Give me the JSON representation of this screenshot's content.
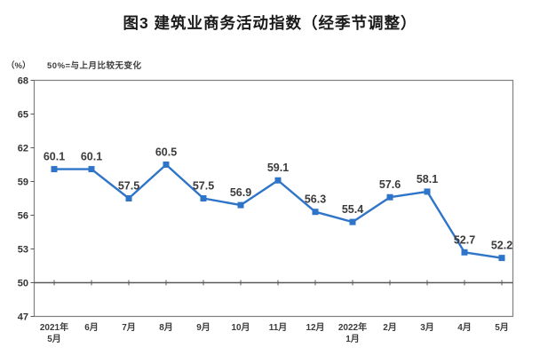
{
  "page": {
    "background": "#ffffff"
  },
  "chart_data": {
    "type": "line",
    "title": "图3 建筑业商务活动指数（经季节调整）",
    "unit_label": "（%）",
    "note": "50%=与上月比较无变化",
    "categories": [
      "2021年\n5月",
      "6月",
      "7月",
      "8月",
      "9月",
      "10月",
      "11月",
      "12月",
      "2022年\n1月",
      "2月",
      "3月",
      "4月",
      "5月"
    ],
    "values": [
      60.1,
      60.1,
      57.5,
      60.5,
      57.5,
      56.9,
      59.1,
      56.3,
      55.4,
      57.6,
      58.1,
      52.7,
      52.2
    ],
    "data_labels": [
      "60.1",
      "60.1",
      "57.5",
      "60.5",
      "57.5",
      "56.9",
      "59.1",
      "56.3",
      "55.4",
      "57.6",
      "58.1",
      "52.7",
      "52.2"
    ],
    "ylim": [
      47,
      68
    ],
    "yticks": [
      47,
      50,
      53,
      56,
      59,
      62,
      65,
      68
    ],
    "reference_line": 50,
    "grid": false,
    "legend_position": "none",
    "marker": "square",
    "colors": {
      "line": "#2E74C8",
      "marker": "#2E74C8",
      "reference_line": "#595959",
      "axis_border": "#808080",
      "tick": "#595959",
      "axis_text": "#333333",
      "data_label_text": "#3B3B3B",
      "title_text": "#1A1A1A"
    }
  }
}
